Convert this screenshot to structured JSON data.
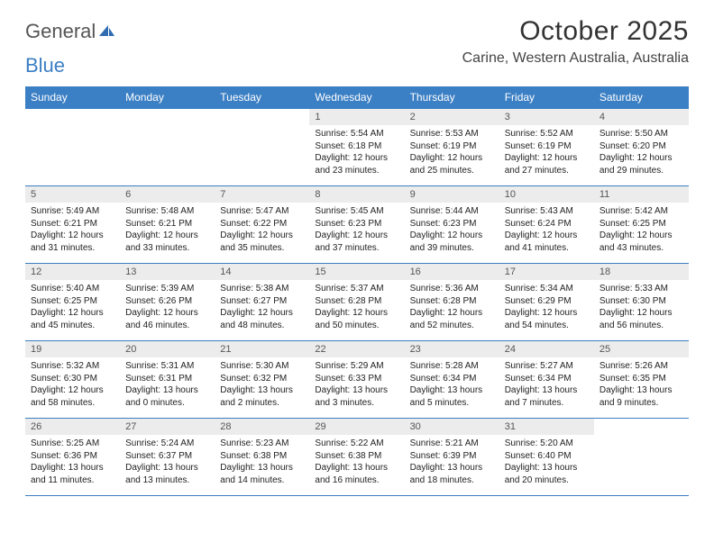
{
  "logo": {
    "word1": "General",
    "word2": "Blue"
  },
  "header": {
    "month_title": "October 2025",
    "location": "Carine, Western Australia, Australia"
  },
  "colors": {
    "header_bg": "#3b7fc4",
    "header_text": "#ffffff",
    "daynum_bg": "#ececec",
    "border": "#3b7fc4",
    "page_bg": "#ffffff"
  },
  "day_headers": [
    "Sunday",
    "Monday",
    "Tuesday",
    "Wednesday",
    "Thursday",
    "Friday",
    "Saturday"
  ],
  "weeks": [
    [
      null,
      null,
      null,
      {
        "n": "1",
        "sr": "Sunrise: 5:54 AM",
        "ss": "Sunset: 6:18 PM",
        "d1": "Daylight: 12 hours",
        "d2": "and 23 minutes."
      },
      {
        "n": "2",
        "sr": "Sunrise: 5:53 AM",
        "ss": "Sunset: 6:19 PM",
        "d1": "Daylight: 12 hours",
        "d2": "and 25 minutes."
      },
      {
        "n": "3",
        "sr": "Sunrise: 5:52 AM",
        "ss": "Sunset: 6:19 PM",
        "d1": "Daylight: 12 hours",
        "d2": "and 27 minutes."
      },
      {
        "n": "4",
        "sr": "Sunrise: 5:50 AM",
        "ss": "Sunset: 6:20 PM",
        "d1": "Daylight: 12 hours",
        "d2": "and 29 minutes."
      }
    ],
    [
      {
        "n": "5",
        "sr": "Sunrise: 5:49 AM",
        "ss": "Sunset: 6:21 PM",
        "d1": "Daylight: 12 hours",
        "d2": "and 31 minutes."
      },
      {
        "n": "6",
        "sr": "Sunrise: 5:48 AM",
        "ss": "Sunset: 6:21 PM",
        "d1": "Daylight: 12 hours",
        "d2": "and 33 minutes."
      },
      {
        "n": "7",
        "sr": "Sunrise: 5:47 AM",
        "ss": "Sunset: 6:22 PM",
        "d1": "Daylight: 12 hours",
        "d2": "and 35 minutes."
      },
      {
        "n": "8",
        "sr": "Sunrise: 5:45 AM",
        "ss": "Sunset: 6:23 PM",
        "d1": "Daylight: 12 hours",
        "d2": "and 37 minutes."
      },
      {
        "n": "9",
        "sr": "Sunrise: 5:44 AM",
        "ss": "Sunset: 6:23 PM",
        "d1": "Daylight: 12 hours",
        "d2": "and 39 minutes."
      },
      {
        "n": "10",
        "sr": "Sunrise: 5:43 AM",
        "ss": "Sunset: 6:24 PM",
        "d1": "Daylight: 12 hours",
        "d2": "and 41 minutes."
      },
      {
        "n": "11",
        "sr": "Sunrise: 5:42 AM",
        "ss": "Sunset: 6:25 PM",
        "d1": "Daylight: 12 hours",
        "d2": "and 43 minutes."
      }
    ],
    [
      {
        "n": "12",
        "sr": "Sunrise: 5:40 AM",
        "ss": "Sunset: 6:25 PM",
        "d1": "Daylight: 12 hours",
        "d2": "and 45 minutes."
      },
      {
        "n": "13",
        "sr": "Sunrise: 5:39 AM",
        "ss": "Sunset: 6:26 PM",
        "d1": "Daylight: 12 hours",
        "d2": "and 46 minutes."
      },
      {
        "n": "14",
        "sr": "Sunrise: 5:38 AM",
        "ss": "Sunset: 6:27 PM",
        "d1": "Daylight: 12 hours",
        "d2": "and 48 minutes."
      },
      {
        "n": "15",
        "sr": "Sunrise: 5:37 AM",
        "ss": "Sunset: 6:28 PM",
        "d1": "Daylight: 12 hours",
        "d2": "and 50 minutes."
      },
      {
        "n": "16",
        "sr": "Sunrise: 5:36 AM",
        "ss": "Sunset: 6:28 PM",
        "d1": "Daylight: 12 hours",
        "d2": "and 52 minutes."
      },
      {
        "n": "17",
        "sr": "Sunrise: 5:34 AM",
        "ss": "Sunset: 6:29 PM",
        "d1": "Daylight: 12 hours",
        "d2": "and 54 minutes."
      },
      {
        "n": "18",
        "sr": "Sunrise: 5:33 AM",
        "ss": "Sunset: 6:30 PM",
        "d1": "Daylight: 12 hours",
        "d2": "and 56 minutes."
      }
    ],
    [
      {
        "n": "19",
        "sr": "Sunrise: 5:32 AM",
        "ss": "Sunset: 6:30 PM",
        "d1": "Daylight: 12 hours",
        "d2": "and 58 minutes."
      },
      {
        "n": "20",
        "sr": "Sunrise: 5:31 AM",
        "ss": "Sunset: 6:31 PM",
        "d1": "Daylight: 13 hours",
        "d2": "and 0 minutes."
      },
      {
        "n": "21",
        "sr": "Sunrise: 5:30 AM",
        "ss": "Sunset: 6:32 PM",
        "d1": "Daylight: 13 hours",
        "d2": "and 2 minutes."
      },
      {
        "n": "22",
        "sr": "Sunrise: 5:29 AM",
        "ss": "Sunset: 6:33 PM",
        "d1": "Daylight: 13 hours",
        "d2": "and 3 minutes."
      },
      {
        "n": "23",
        "sr": "Sunrise: 5:28 AM",
        "ss": "Sunset: 6:34 PM",
        "d1": "Daylight: 13 hours",
        "d2": "and 5 minutes."
      },
      {
        "n": "24",
        "sr": "Sunrise: 5:27 AM",
        "ss": "Sunset: 6:34 PM",
        "d1": "Daylight: 13 hours",
        "d2": "and 7 minutes."
      },
      {
        "n": "25",
        "sr": "Sunrise: 5:26 AM",
        "ss": "Sunset: 6:35 PM",
        "d1": "Daylight: 13 hours",
        "d2": "and 9 minutes."
      }
    ],
    [
      {
        "n": "26",
        "sr": "Sunrise: 5:25 AM",
        "ss": "Sunset: 6:36 PM",
        "d1": "Daylight: 13 hours",
        "d2": "and 11 minutes."
      },
      {
        "n": "27",
        "sr": "Sunrise: 5:24 AM",
        "ss": "Sunset: 6:37 PM",
        "d1": "Daylight: 13 hours",
        "d2": "and 13 minutes."
      },
      {
        "n": "28",
        "sr": "Sunrise: 5:23 AM",
        "ss": "Sunset: 6:38 PM",
        "d1": "Daylight: 13 hours",
        "d2": "and 14 minutes."
      },
      {
        "n": "29",
        "sr": "Sunrise: 5:22 AM",
        "ss": "Sunset: 6:38 PM",
        "d1": "Daylight: 13 hours",
        "d2": "and 16 minutes."
      },
      {
        "n": "30",
        "sr": "Sunrise: 5:21 AM",
        "ss": "Sunset: 6:39 PM",
        "d1": "Daylight: 13 hours",
        "d2": "and 18 minutes."
      },
      {
        "n": "31",
        "sr": "Sunrise: 5:20 AM",
        "ss": "Sunset: 6:40 PM",
        "d1": "Daylight: 13 hours",
        "d2": "and 20 minutes."
      },
      null
    ]
  ]
}
